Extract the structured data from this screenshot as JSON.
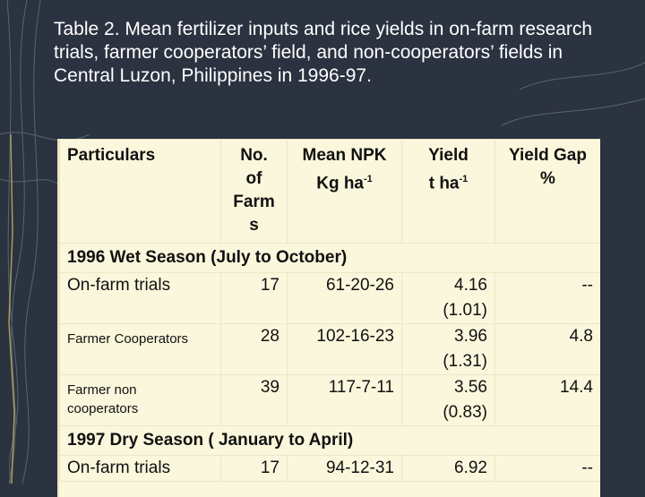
{
  "slide": {
    "title": "Table 2. Mean fertilizer inputs and rice yields in on-farm research trials, farmer cooperators’ field, and non-cooperators’ fields in Central Luzon, Philippines in 1996-97."
  },
  "table": {
    "headers": {
      "particulars": "Particulars",
      "no_farms_line1": "No.",
      "no_farms_line2": "of",
      "no_farms_line3": "Farm",
      "no_farms_line4": "s",
      "npk_line1": "Mean NPK",
      "npk_line2_base": "Kg ha",
      "npk_line2_sup": "-1",
      "yield_line1": "Yield",
      "yield_line2_base": "t ha",
      "yield_line2_sup": "-1",
      "gap_line1": "Yield Gap",
      "gap_line2": "%"
    },
    "seasons": [
      {
        "label": "1996 Wet Season (July to October)",
        "rows": [
          {
            "particular": "On-farm trials",
            "farms": "17",
            "npk": "61-20-26",
            "yield": "4.16",
            "yield_sd": "(1.01)",
            "gap": "--"
          },
          {
            "particular": "Farmer Cooperators",
            "farms": "28",
            "npk": "102-16-23",
            "yield": "3.96",
            "yield_sd": "(1.31)",
            "gap": "4.8"
          },
          {
            "particular_line1": "Farmer non",
            "particular_line2": "cooperators",
            "farms": "39",
            "npk": "117-7-11",
            "yield": "3.56",
            "yield_sd": "(0.83)",
            "gap": "14.4"
          }
        ]
      },
      {
        "label": "1997 Dry Season ( January to April)",
        "rows": [
          {
            "particular": "On-farm trials",
            "farms": "17",
            "npk": "94-12-31",
            "yield": "6.92",
            "gap": "--"
          }
        ]
      }
    ]
  },
  "colors": {
    "background": "#2b3240",
    "table_fill": "#fbf7dc",
    "title_text": "#ffffff"
  }
}
